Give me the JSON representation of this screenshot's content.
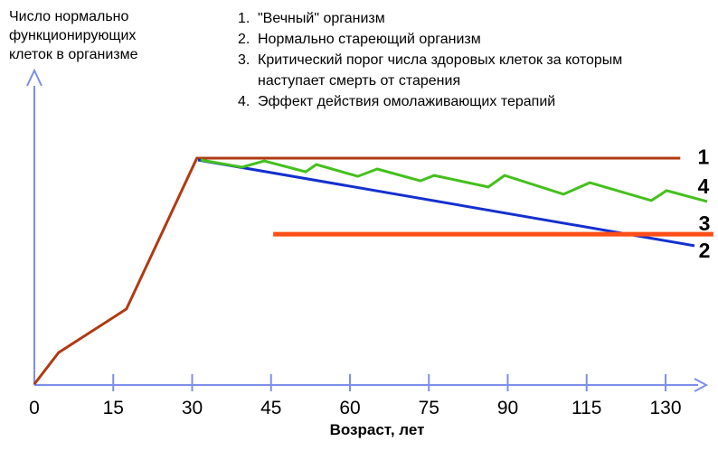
{
  "page": {
    "background": "#ffffff"
  },
  "chart_data": {
    "type": "line",
    "title": "",
    "ylabel": "Число нормально функционирующих клеток в организме",
    "xlabel": "Возраст, лет",
    "x_ticks": [
      "0",
      "15",
      "30",
      "45",
      "60",
      "75",
      "90",
      "115",
      "130"
    ],
    "y_axis_values_shown": false,
    "grid": false,
    "axis_color": "#7d8ee8",
    "text_color": "#000000",
    "xlim_note": "x in years (ticks every 15 px-units; axis mislabels 105 as 115)",
    "ylim": [
      0,
      110
    ],
    "series": [
      {
        "label": "1",
        "name": "\"Вечный\" организм",
        "color": "#b03a12",
        "width": 3,
        "points": [
          [
            0,
            0.4
          ],
          [
            4.6,
            14.3
          ],
          [
            17.5,
            33.5
          ],
          [
            30.9,
            100
          ],
          [
            122.8,
            100
          ]
        ],
        "label_pos": [
          127.2,
          100.5
        ]
      },
      {
        "label": "2",
        "name": "Нормально стареющий организм",
        "color": "#1430cf",
        "width": 3,
        "points": [
          [
            31.1,
            99.2
          ],
          [
            125.5,
            61.4
          ]
        ],
        "label_pos": [
          127.4,
          59.4
        ]
      },
      {
        "label": "3",
        "name": "Критический порог числа здоровых клеток за которым наступает смерть от старения",
        "color": "#ff4e16",
        "width": 5,
        "points": [
          [
            45.4,
            66.5
          ],
          [
            129.1,
            66.5
          ]
        ],
        "label_pos": [
          127.4,
          71.3
        ]
      },
      {
        "label": "4",
        "name": "Эффект действия омолаживающих терапий",
        "color": "#44c01c",
        "width": 3,
        "points": [
          [
            31.6,
            99.2
          ],
          [
            39.5,
            96
          ],
          [
            43.7,
            98.8
          ],
          [
            51.6,
            94
          ],
          [
            53.6,
            97.2
          ],
          [
            61.5,
            92
          ],
          [
            65.2,
            95.2
          ],
          [
            73.4,
            90
          ],
          [
            76,
            92.4
          ],
          [
            86.3,
            87.3
          ],
          [
            89.4,
            92.4
          ],
          [
            100.6,
            84.1
          ],
          [
            105.6,
            89.2
          ],
          [
            117.3,
            81.3
          ],
          [
            120.2,
            85.7
          ],
          [
            127.9,
            80.9
          ]
        ],
        "label_pos": [
          127.2,
          87.6
        ]
      }
    ]
  },
  "legend": {
    "items": [
      {
        "num": "1.",
        "text": "\"Вечный\" организм"
      },
      {
        "num": "2.",
        "text": "Нормально стареющий организм"
      },
      {
        "num": "3.",
        "text": "Критический порог числа здоровых клеток за которым",
        "text2": "наступает смерть от старения"
      },
      {
        "num": "4.",
        "text": "Эффект действия омолаживающих терапий"
      }
    ]
  }
}
